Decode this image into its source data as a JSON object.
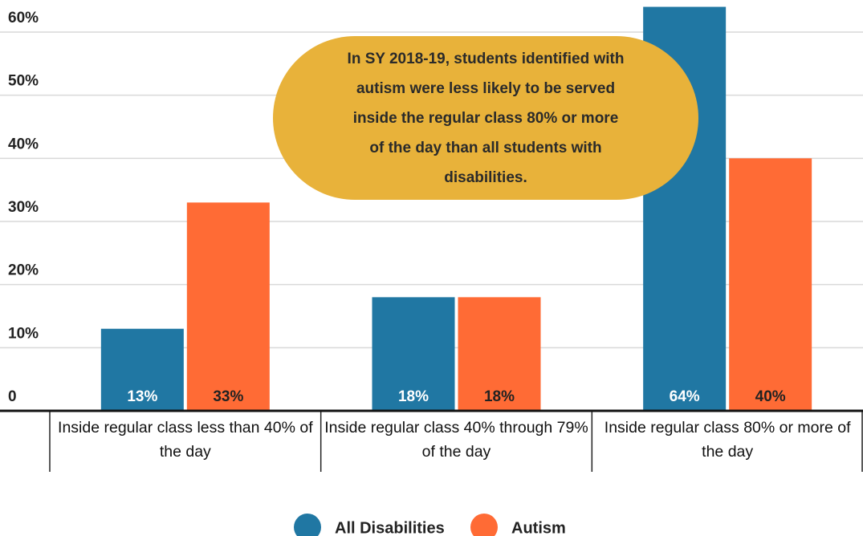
{
  "chart_data": {
    "type": "bar",
    "categories": [
      "Inside regular class less than 40% of the day",
      "Inside regular class 40% through 79% of the day",
      "Inside regular class 80% or more of the day"
    ],
    "series": [
      {
        "name": "All Disabilities",
        "color": "#2077a3",
        "values": [
          13,
          18,
          64
        ],
        "value_labels": [
          "13%",
          "18%",
          "64%"
        ]
      },
      {
        "name": "Autism",
        "color": "#ff6b35",
        "values": [
          33,
          18,
          40
        ],
        "value_labels": [
          "33%",
          "18%",
          "40%"
        ]
      }
    ],
    "ylim": [
      0,
      60
    ],
    "yticks": [
      0,
      {
        "value": 10,
        "label": "10%"
      },
      {
        "value": 20,
        "label": "20%"
      },
      {
        "value": 30,
        "label": "30%"
      },
      {
        "value": 40,
        "label": "40%"
      },
      {
        "value": 50,
        "label": "50%"
      },
      {
        "value": 60,
        "label": "60%"
      }
    ],
    "grid": true,
    "annotation": "In SY 2018-19, students identified with autism were less likely to be served inside the regular class 80% or more of the day than all students with disabilities.",
    "legend": "bottom"
  }
}
